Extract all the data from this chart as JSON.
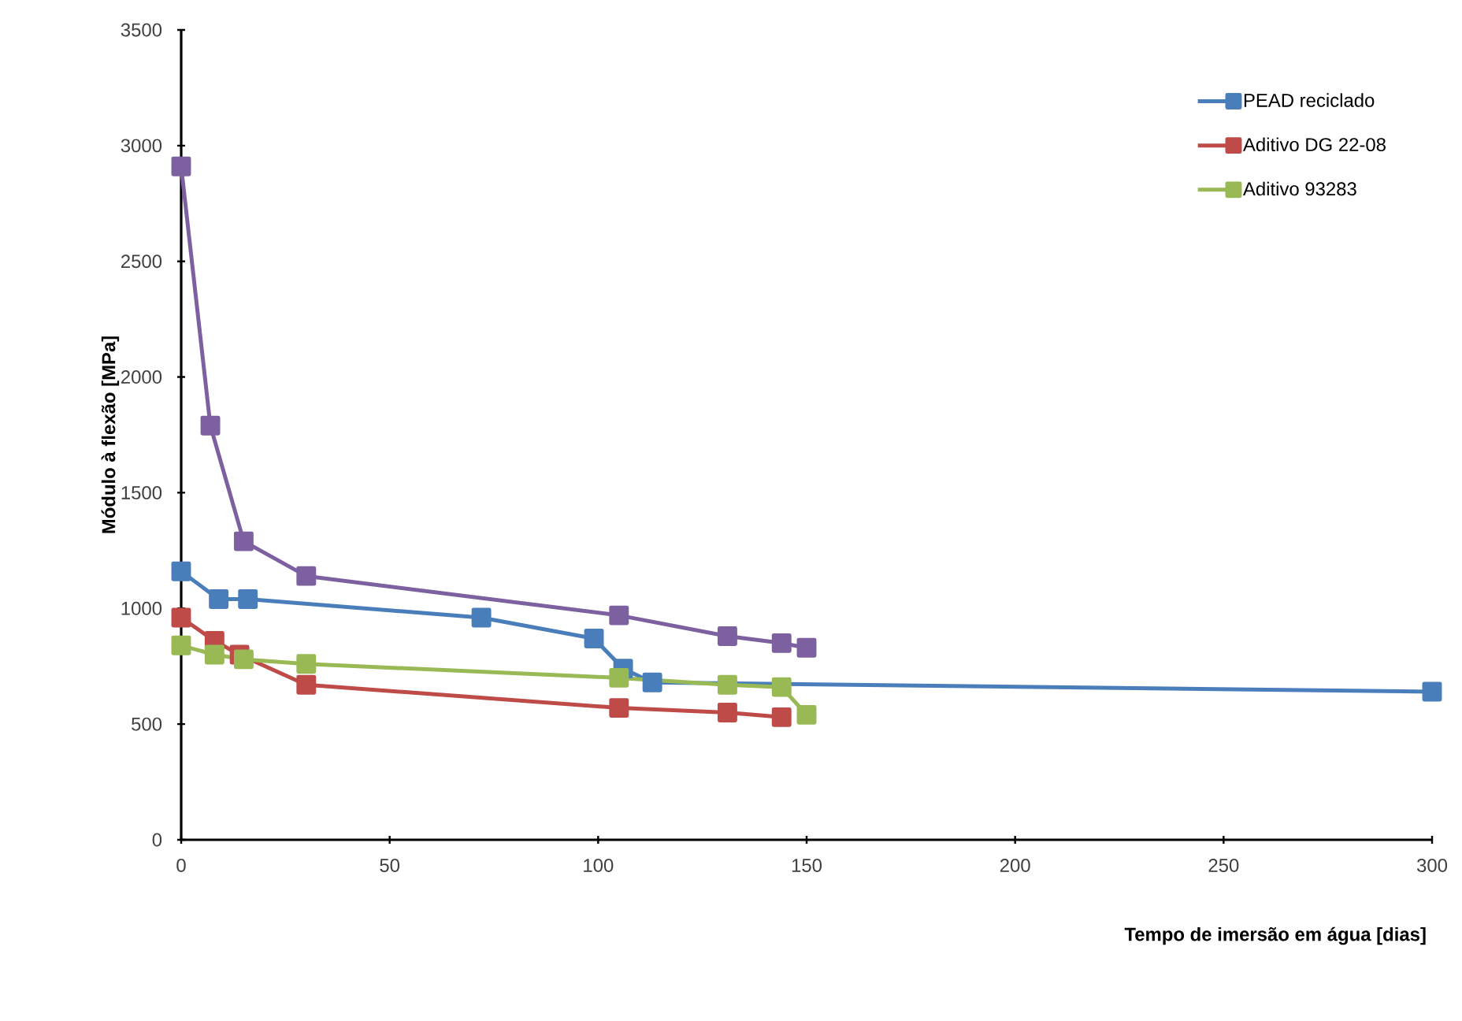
{
  "chart_data": {
    "type": "line",
    "xlabel": "Tempo de imersão em água [dias]",
    "ylabel": "Módulo à flexão [MPa]",
    "xlim": [
      0,
      300
    ],
    "xticks": [
      0,
      50,
      100,
      150,
      200,
      250,
      300
    ],
    "ylim": [
      0,
      3500
    ],
    "yticks": [
      0,
      500,
      1000,
      1500,
      2000,
      2500,
      3000,
      3500
    ],
    "grid": false,
    "legend": "top right",
    "marker": "square",
    "line_style": "solid",
    "series": [
      {
        "name": "PEAD reciclado",
        "color": "#4a7ebb",
        "x": [
          0,
          9,
          16,
          72,
          99,
          106,
          113,
          300
        ],
        "values": [
          1160,
          1040,
          1040,
          960,
          870,
          740,
          680,
          640
        ]
      },
      {
        "name": "Aditivo DG 22-08",
        "color": "#be4b48",
        "x": [
          0,
          8,
          14,
          30,
          105,
          131,
          144
        ],
        "values": [
          960,
          860,
          800,
          670,
          570,
          550,
          530
        ]
      },
      {
        "name": "Aditivo 93283",
        "color": "#98b954",
        "x": [
          0,
          8,
          15,
          30,
          105,
          131,
          144,
          150
        ],
        "values": [
          840,
          800,
          780,
          760,
          700,
          670,
          660,
          540
        ]
      },
      {
        "color": "#7d60a0",
        "x": [
          0,
          7,
          15,
          30,
          105,
          131,
          144,
          150
        ],
        "values": [
          2910,
          1790,
          1290,
          1140,
          970,
          880,
          850,
          830
        ]
      }
    ]
  }
}
